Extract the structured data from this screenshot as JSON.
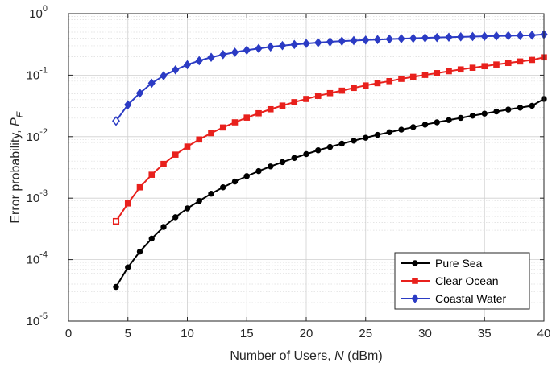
{
  "chart_data": {
    "type": "line",
    "xlabel": "Number of Users, ",
    "xlabel_var": "N",
    "xlabel_unit": " (dBm)",
    "ylabel": "Error probability, ",
    "ylabel_var": "P",
    "ylabel_sub": "E",
    "xlim": [
      0,
      40
    ],
    "ylim": [
      1e-05,
      1
    ],
    "yscale": "log",
    "grid": true,
    "minor_grid": true,
    "legend_position": "bottom-right",
    "x_ticks": [
      "0",
      "5",
      "10",
      "15",
      "20",
      "25",
      "30",
      "35",
      "40"
    ],
    "y_ticks": [
      {
        "base": "10",
        "exp": "-5"
      },
      {
        "base": "10",
        "exp": "-4"
      },
      {
        "base": "10",
        "exp": "-3"
      },
      {
        "base": "10",
        "exp": "-2"
      },
      {
        "base": "10",
        "exp": "-1"
      },
      {
        "base": "10",
        "exp": "0"
      }
    ],
    "x": [
      4,
      5,
      6,
      7,
      8,
      9,
      10,
      11,
      12,
      13,
      14,
      15,
      16,
      17,
      18,
      19,
      20,
      21,
      22,
      23,
      24,
      25,
      26,
      27,
      28,
      29,
      30,
      31,
      32,
      33,
      34,
      35,
      36,
      37,
      38,
      39,
      40
    ],
    "series": [
      {
        "name": "Pure Sea",
        "color": "#000000",
        "marker": "circle",
        "values": [
          3.6e-05,
          7.5e-05,
          0.000135,
          0.00022,
          0.00034,
          0.00049,
          0.00068,
          0.0009,
          0.00118,
          0.0015,
          0.00186,
          0.00228,
          0.00275,
          0.00328,
          0.00386,
          0.0045,
          0.0052,
          0.006,
          0.0068,
          0.0077,
          0.0086,
          0.0096,
          0.0107,
          0.0118,
          0.013,
          0.0143,
          0.0157,
          0.0171,
          0.0186,
          0.0202,
          0.0219,
          0.0237,
          0.0256,
          0.0276,
          0.0296,
          0.0318,
          0.041
        ]
      },
      {
        "name": "Clear Ocean",
        "color": "#e8201c",
        "marker": "square",
        "values": [
          0.00042,
          0.00082,
          0.0015,
          0.0024,
          0.0036,
          0.0051,
          0.0069,
          0.009,
          0.0114,
          0.0141,
          0.0171,
          0.0204,
          0.024,
          0.0279,
          0.032,
          0.0364,
          0.041,
          0.046,
          0.051,
          0.056,
          0.062,
          0.068,
          0.074,
          0.08,
          0.087,
          0.094,
          0.101,
          0.108,
          0.116,
          0.124,
          0.132,
          0.14,
          0.149,
          0.158,
          0.167,
          0.177,
          0.195
        ]
      },
      {
        "name": "Coastal Water",
        "color": "#2b3bc4",
        "marker": "diamond",
        "values": [
          0.018,
          0.033,
          0.051,
          0.074,
          0.098,
          0.122,
          0.148,
          0.172,
          0.195,
          0.216,
          0.236,
          0.255,
          0.272,
          0.288,
          0.302,
          0.315,
          0.327,
          0.338,
          0.348,
          0.357,
          0.365,
          0.372,
          0.379,
          0.386,
          0.392,
          0.398,
          0.404,
          0.409,
          0.414,
          0.419,
          0.424,
          0.428,
          0.433,
          0.437,
          0.441,
          0.445,
          0.46
        ]
      }
    ]
  }
}
